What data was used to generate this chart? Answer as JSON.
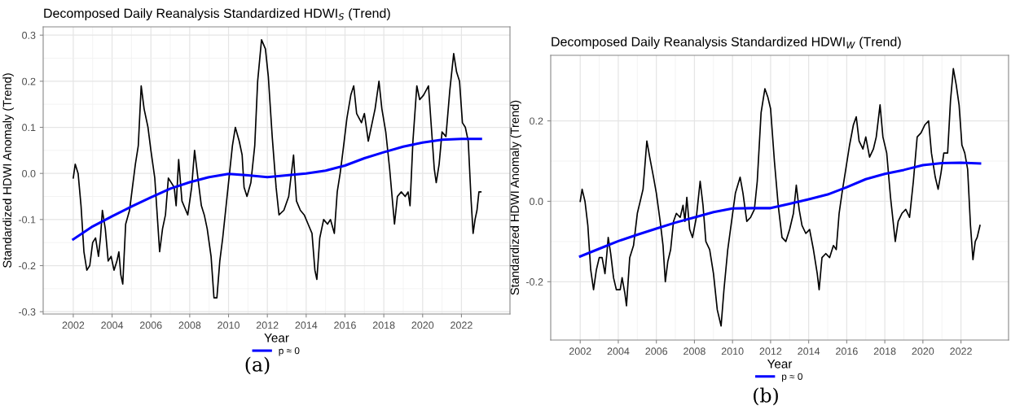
{
  "chart_data": [
    {
      "type": "line",
      "title": "Decomposed Daily Reanalysis Standardized HDWI$_{S}$ (Trend)",
      "xlabel": "Year",
      "ylabel": "Standardized HDWI Anomaly (Trend)",
      "annotations": [
        "(a)"
      ],
      "xlim": [
        2000.45,
        2024.5
      ],
      "xticks": [
        2002,
        2004,
        2006,
        2008,
        2010,
        2012,
        2014,
        2016,
        2018,
        2020,
        2022
      ],
      "ylim": [
        -0.305,
        0.318
      ],
      "yticks": [
        -0.3,
        -0.2,
        -0.1,
        {
          "value": 0,
          "label": "0.0"
        },
        0.1,
        0.2,
        0.3
      ],
      "grid": true,
      "legend": "bottom",
      "series": [
        {
          "color": "#000000",
          "x": [
            2002.0,
            2002.1,
            2002.25,
            2002.4,
            2002.55,
            2002.7,
            2002.85,
            2003.0,
            2003.15,
            2003.3,
            2003.4,
            2003.5,
            2003.65,
            2003.8,
            2003.95,
            2004.1,
            2004.25,
            2004.35,
            2004.45,
            2004.55,
            2004.7,
            2004.9,
            2005.05,
            2005.2,
            2005.35,
            2005.5,
            2005.65,
            2005.85,
            2006.0,
            2006.2,
            2006.45,
            2006.6,
            2006.75,
            2006.9,
            2007.2,
            2007.3,
            2007.43,
            2007.6,
            2007.9,
            2008.1,
            2008.25,
            2008.45,
            2008.6,
            2008.75,
            2008.9,
            2009.1,
            2009.25,
            2009.4,
            2009.55,
            2009.7,
            2009.9,
            2010.05,
            2010.2,
            2010.35,
            2010.55,
            2010.7,
            2010.8,
            2010.95,
            2011.15,
            2011.35,
            2011.5,
            2011.7,
            2011.9,
            2012.05,
            2012.25,
            2012.45,
            2012.6,
            2012.85,
            2013.1,
            2013.35,
            2013.5,
            2013.7,
            2013.9,
            2014.1,
            2014.3,
            2014.45,
            2014.55,
            2014.7,
            2014.9,
            2015.1,
            2015.25,
            2015.45,
            2015.6,
            2015.75,
            2015.9,
            2016.1,
            2016.3,
            2016.45,
            2016.6,
            2016.85,
            2017.0,
            2017.2,
            2017.4,
            2017.55,
            2017.75,
            2017.9,
            2018.1,
            2018.3,
            2018.55,
            2018.7,
            2018.9,
            2019.1,
            2019.25,
            2019.35,
            2019.5,
            2019.7,
            2019.85,
            2020.05,
            2020.3,
            2020.45,
            2020.6,
            2020.7,
            2020.85,
            2021.0,
            2021.2,
            2021.4,
            2021.6,
            2021.75,
            2021.9,
            2022.05,
            2022.2,
            2022.35,
            2022.5,
            2022.6,
            2022.7,
            2022.8,
            2022.9,
            2023.0
          ],
          "values": [
            -0.01,
            0.02,
            0.0,
            -0.07,
            -0.17,
            -0.21,
            -0.2,
            -0.15,
            -0.14,
            -0.18,
            -0.14,
            -0.08,
            -0.12,
            -0.19,
            -0.18,
            -0.21,
            -0.19,
            -0.17,
            -0.22,
            -0.24,
            -0.11,
            -0.08,
            -0.03,
            0.02,
            0.06,
            0.19,
            0.14,
            0.1,
            0.05,
            -0.01,
            -0.17,
            -0.12,
            -0.09,
            -0.01,
            -0.03,
            -0.07,
            0.03,
            -0.06,
            -0.09,
            -0.03,
            0.05,
            -0.02,
            -0.07,
            -0.09,
            -0.12,
            -0.18,
            -0.27,
            -0.27,
            -0.19,
            -0.14,
            -0.06,
            0.0,
            0.06,
            0.1,
            0.07,
            0.04,
            -0.03,
            -0.05,
            -0.02,
            0.06,
            0.2,
            0.29,
            0.27,
            0.21,
            0.08,
            -0.03,
            -0.09,
            -0.08,
            -0.05,
            0.04,
            -0.06,
            -0.08,
            -0.09,
            -0.11,
            -0.13,
            -0.21,
            -0.23,
            -0.14,
            -0.1,
            -0.11,
            -0.1,
            -0.13,
            -0.04,
            0.0,
            0.05,
            0.12,
            0.17,
            0.19,
            0.13,
            0.11,
            0.13,
            0.07,
            0.11,
            0.14,
            0.2,
            0.14,
            0.09,
            0.01,
            -0.11,
            -0.05,
            -0.04,
            -0.05,
            -0.04,
            -0.07,
            0.07,
            0.19,
            0.16,
            0.17,
            0.19,
            0.1,
            0.01,
            -0.02,
            0.02,
            0.09,
            0.08,
            0.18,
            0.26,
            0.22,
            0.2,
            0.11,
            0.1,
            0.07,
            -0.06,
            -0.13,
            -0.1,
            -0.08,
            -0.04,
            -0.04
          ]
        },
        {
          "name": "p ≈ 0",
          "color": "#0000ff",
          "x": [
            2002,
            2003,
            2004,
            2005,
            2006,
            2007,
            2008,
            2009,
            2010,
            2011,
            2012,
            2013,
            2014,
            2015,
            2016,
            2017,
            2018,
            2019,
            2020,
            2021,
            2022,
            2023
          ],
          "values": [
            -0.143,
            -0.115,
            -0.093,
            -0.072,
            -0.052,
            -0.033,
            -0.019,
            -0.008,
            -0.001,
            -0.004,
            -0.008,
            -0.004,
            0.0,
            0.006,
            0.017,
            0.033,
            0.046,
            0.058,
            0.067,
            0.073,
            0.075,
            0.075
          ]
        }
      ]
    },
    {
      "type": "line",
      "title": "Decomposed Daily Reanalysis Standardized HDWI$_{W}$ (Trend)",
      "xlabel": "Year",
      "ylabel": "Standardized HDWI Anomaly (Trend)",
      "annotations": [
        "(b)"
      ],
      "xlim": [
        2000.45,
        2024.5
      ],
      "xticks": [
        2002,
        2004,
        2006,
        2008,
        2010,
        2012,
        2014,
        2016,
        2018,
        2020,
        2022
      ],
      "ylim": [
        -0.345,
        0.363
      ],
      "yticks": [
        -0.2,
        {
          "value": 0,
          "label": "0.0"
        },
        0.2
      ],
      "grid": true,
      "legend": "bottom",
      "series": [
        {
          "color": "#000000",
          "x": [
            2002.0,
            2002.1,
            2002.25,
            2002.4,
            2002.55,
            2002.7,
            2002.85,
            2003.0,
            2003.15,
            2003.3,
            2003.4,
            2003.47,
            2003.6,
            2003.75,
            2003.9,
            2004.1,
            2004.2,
            2004.35,
            2004.43,
            2004.6,
            2004.8,
            2005.0,
            2005.15,
            2005.3,
            2005.4,
            2005.5,
            2005.65,
            2005.85,
            2006.0,
            2006.2,
            2006.35,
            2006.47,
            2006.6,
            2006.75,
            2006.9,
            2007.05,
            2007.25,
            2007.4,
            2007.5,
            2007.6,
            2007.75,
            2007.9,
            2008.1,
            2008.3,
            2008.45,
            2008.6,
            2008.8,
            2009.0,
            2009.2,
            2009.4,
            2009.55,
            2009.75,
            2009.95,
            2010.15,
            2010.4,
            2010.55,
            2010.75,
            2010.95,
            2011.15,
            2011.3,
            2011.5,
            2011.7,
            2011.85,
            2012.0,
            2012.2,
            2012.4,
            2012.6,
            2012.8,
            2013.0,
            2013.2,
            2013.35,
            2013.5,
            2013.65,
            2013.85,
            2014.05,
            2014.25,
            2014.45,
            2014.55,
            2014.7,
            2014.9,
            2015.1,
            2015.3,
            2015.45,
            2015.6,
            2015.75,
            2015.95,
            2016.15,
            2016.35,
            2016.5,
            2016.65,
            2016.85,
            2017.0,
            2017.2,
            2017.4,
            2017.55,
            2017.75,
            2017.9,
            2018.1,
            2018.3,
            2018.55,
            2018.7,
            2018.9,
            2019.1,
            2019.3,
            2019.5,
            2019.7,
            2019.9,
            2020.1,
            2020.3,
            2020.45,
            2020.65,
            2020.8,
            2020.95,
            2021.1,
            2021.3,
            2021.45,
            2021.6,
            2021.75,
            2021.9,
            2022.05,
            2022.2,
            2022.35,
            2022.5,
            2022.63,
            2022.75,
            2022.85,
            2023.0
          ],
          "values": [
            0.0,
            0.03,
            0.0,
            -0.06,
            -0.17,
            -0.22,
            -0.17,
            -0.14,
            -0.14,
            -0.18,
            -0.13,
            -0.09,
            -0.13,
            -0.19,
            -0.22,
            -0.22,
            -0.19,
            -0.23,
            -0.26,
            -0.14,
            -0.11,
            -0.03,
            0.0,
            0.03,
            0.09,
            0.15,
            0.11,
            0.06,
            0.02,
            -0.05,
            -0.11,
            -0.2,
            -0.15,
            -0.12,
            -0.05,
            -0.03,
            -0.04,
            -0.01,
            -0.05,
            0.01,
            -0.07,
            -0.09,
            -0.04,
            0.05,
            -0.01,
            -0.1,
            -0.12,
            -0.18,
            -0.27,
            -0.31,
            -0.22,
            -0.12,
            -0.05,
            0.02,
            0.06,
            0.02,
            -0.05,
            -0.04,
            -0.02,
            0.05,
            0.22,
            0.28,
            0.26,
            0.23,
            0.1,
            -0.01,
            -0.09,
            -0.1,
            -0.07,
            -0.03,
            0.04,
            -0.02,
            -0.06,
            -0.08,
            -0.07,
            -0.12,
            -0.18,
            -0.22,
            -0.14,
            -0.13,
            -0.14,
            -0.11,
            -0.12,
            -0.03,
            0.02,
            0.08,
            0.14,
            0.19,
            0.21,
            0.15,
            0.13,
            0.16,
            0.11,
            0.13,
            0.16,
            0.24,
            0.16,
            0.12,
            0.01,
            -0.1,
            -0.05,
            -0.03,
            -0.02,
            -0.04,
            0.05,
            0.16,
            0.17,
            0.19,
            0.2,
            0.12,
            0.06,
            0.03,
            0.07,
            0.12,
            0.12,
            0.25,
            0.33,
            0.29,
            0.24,
            0.14,
            0.12,
            0.08,
            -0.06,
            -0.145,
            -0.1,
            -0.09,
            -0.06
          ]
        },
        {
          "name": "p ≈ 0",
          "color": "#0000ff",
          "x": [
            2002,
            2003,
            2004,
            2005,
            2006,
            2007,
            2008,
            2009,
            2010,
            2011,
            2012,
            2013,
            2014,
            2015,
            2016,
            2017,
            2018,
            2019,
            2020,
            2021,
            2022,
            2023
          ],
          "values": [
            -0.137,
            -0.118,
            -0.099,
            -0.083,
            -0.068,
            -0.053,
            -0.04,
            -0.027,
            -0.018,
            -0.017,
            -0.017,
            -0.006,
            0.005,
            0.017,
            0.035,
            0.055,
            0.068,
            0.078,
            0.09,
            0.095,
            0.096,
            0.094
          ]
        }
      ]
    }
  ]
}
